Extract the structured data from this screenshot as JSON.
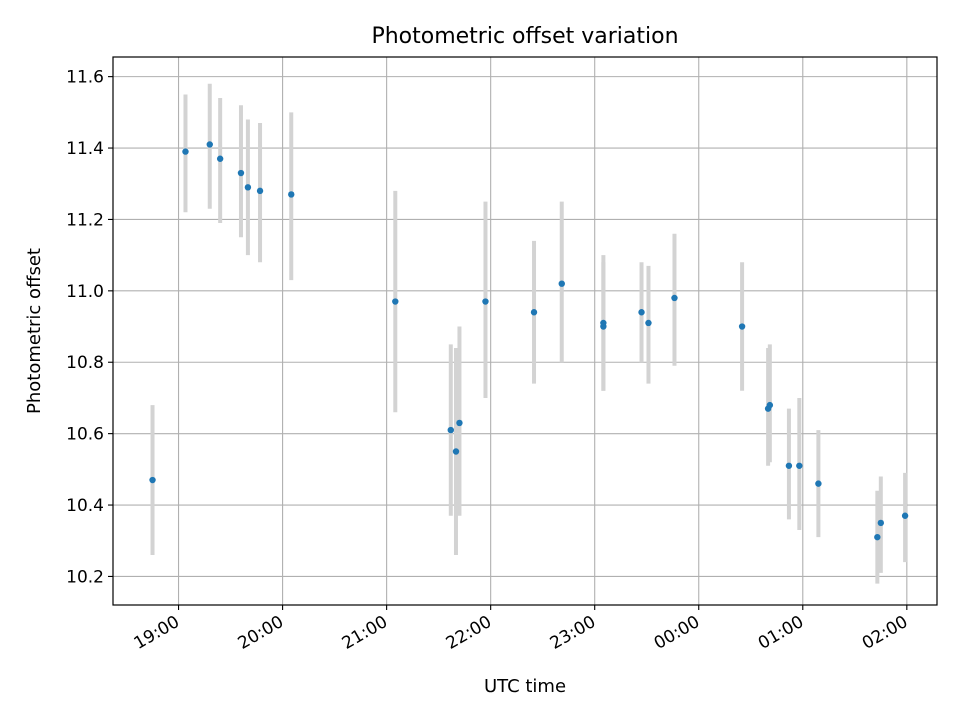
{
  "chart_data": {
    "type": "scatter",
    "title": "Photometric offset variation",
    "xlabel": "UTC time",
    "ylabel": "Photometric offset",
    "grid": true,
    "xlim_hours": [
      18.37,
      26.29
    ],
    "ylim": [
      10.12,
      11.655
    ],
    "x_ticks": [
      {
        "label": "19:00",
        "hours": 19
      },
      {
        "label": "20:00",
        "hours": 20
      },
      {
        "label": "21:00",
        "hours": 21
      },
      {
        "label": "22:00",
        "hours": 22
      },
      {
        "label": "23:00",
        "hours": 23
      },
      {
        "label": "00:00",
        "hours": 24
      },
      {
        "label": "01:00",
        "hours": 25
      },
      {
        "label": "02:00",
        "hours": 26
      }
    ],
    "y_ticks": [
      {
        "label": "10.2",
        "value": 10.2
      },
      {
        "label": "10.4",
        "value": 10.4
      },
      {
        "label": "10.6",
        "value": 10.6
      },
      {
        "label": "10.8",
        "value": 10.8
      },
      {
        "label": "11.0",
        "value": 11.0
      },
      {
        "label": "11.2",
        "value": 11.2
      },
      {
        "label": "11.4",
        "value": 11.4
      },
      {
        "label": "11.6",
        "value": 11.6
      }
    ],
    "point_color": "#1f77b4",
    "errorbar_color": "#d3d3d3",
    "points": [
      {
        "time": "18:45",
        "y": 10.47,
        "ylow": 10.26,
        "yhigh": 10.68
      },
      {
        "time": "19:04",
        "y": 11.39,
        "ylow": 11.22,
        "yhigh": 11.55
      },
      {
        "time": "19:18",
        "y": 11.41,
        "ylow": 11.23,
        "yhigh": 11.58
      },
      {
        "time": "19:24",
        "y": 11.37,
        "ylow": 11.19,
        "yhigh": 11.54
      },
      {
        "time": "19:36",
        "y": 11.33,
        "ylow": 11.15,
        "yhigh": 11.52
      },
      {
        "time": "19:40",
        "y": 11.29,
        "ylow": 11.1,
        "yhigh": 11.48
      },
      {
        "time": "19:47",
        "y": 11.28,
        "ylow": 11.08,
        "yhigh": 11.47
      },
      {
        "time": "20:05",
        "y": 11.27,
        "ylow": 11.03,
        "yhigh": 11.5
      },
      {
        "time": "21:05",
        "y": 10.97,
        "ylow": 10.66,
        "yhigh": 11.28
      },
      {
        "time": "21:37",
        "y": 10.61,
        "ylow": 10.37,
        "yhigh": 10.85
      },
      {
        "time": "21:40",
        "y": 10.55,
        "ylow": 10.26,
        "yhigh": 10.84
      },
      {
        "time": "21:42",
        "y": 10.63,
        "ylow": 10.37,
        "yhigh": 10.9
      },
      {
        "time": "21:57",
        "y": 10.97,
        "ylow": 10.7,
        "yhigh": 11.25
      },
      {
        "time": "22:25",
        "y": 10.94,
        "ylow": 10.74,
        "yhigh": 11.14
      },
      {
        "time": "22:41",
        "y": 11.02,
        "ylow": 10.8,
        "yhigh": 11.25
      },
      {
        "time": "23:05",
        "y": 10.91,
        "ylow": 10.72,
        "yhigh": 11.1
      },
      {
        "time": "23:05",
        "y": 10.9,
        "ylow": 10.72,
        "yhigh": 11.08
      },
      {
        "time": "23:27",
        "y": 10.94,
        "ylow": 10.8,
        "yhigh": 11.08
      },
      {
        "time": "23:31",
        "y": 10.91,
        "ylow": 10.74,
        "yhigh": 11.07
      },
      {
        "time": "23:46",
        "y": 10.98,
        "ylow": 10.79,
        "yhigh": 11.16
      },
      {
        "time": "00:25",
        "y": 10.9,
        "ylow": 10.72,
        "yhigh": 11.08
      },
      {
        "time": "00:40",
        "y": 10.67,
        "ylow": 10.51,
        "yhigh": 10.84
      },
      {
        "time": "00:41",
        "y": 10.68,
        "ylow": 10.52,
        "yhigh": 10.85
      },
      {
        "time": "00:52",
        "y": 10.51,
        "ylow": 10.36,
        "yhigh": 10.67
      },
      {
        "time": "00:58",
        "y": 10.51,
        "ylow": 10.33,
        "yhigh": 10.7
      },
      {
        "time": "01:09",
        "y": 10.46,
        "ylow": 10.31,
        "yhigh": 10.61
      },
      {
        "time": "01:43",
        "y": 10.31,
        "ylow": 10.18,
        "yhigh": 10.44
      },
      {
        "time": "01:45",
        "y": 10.35,
        "ylow": 10.21,
        "yhigh": 10.48
      },
      {
        "time": "01:59",
        "y": 10.37,
        "ylow": 10.24,
        "yhigh": 10.49
      }
    ]
  }
}
